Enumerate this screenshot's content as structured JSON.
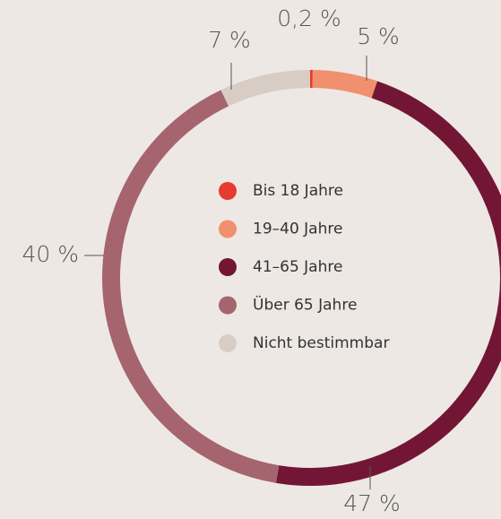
{
  "chart_data": {
    "type": "donut",
    "categories": [
      "Bis 18 Jahre",
      "19–40 Jahre",
      "41–65 Jahre",
      "Über 65 Jahre",
      "Nicht bestimmbar"
    ],
    "values": [
      0.2,
      5,
      47,
      40,
      7
    ],
    "value_labels": [
      "0,2 %",
      "5 %",
      "47 %",
      "40 %",
      "7 %"
    ],
    "colors": [
      "#e63b2e",
      "#f0906e",
      "#731636",
      "#a5646e",
      "#d8cdc4"
    ]
  }
}
